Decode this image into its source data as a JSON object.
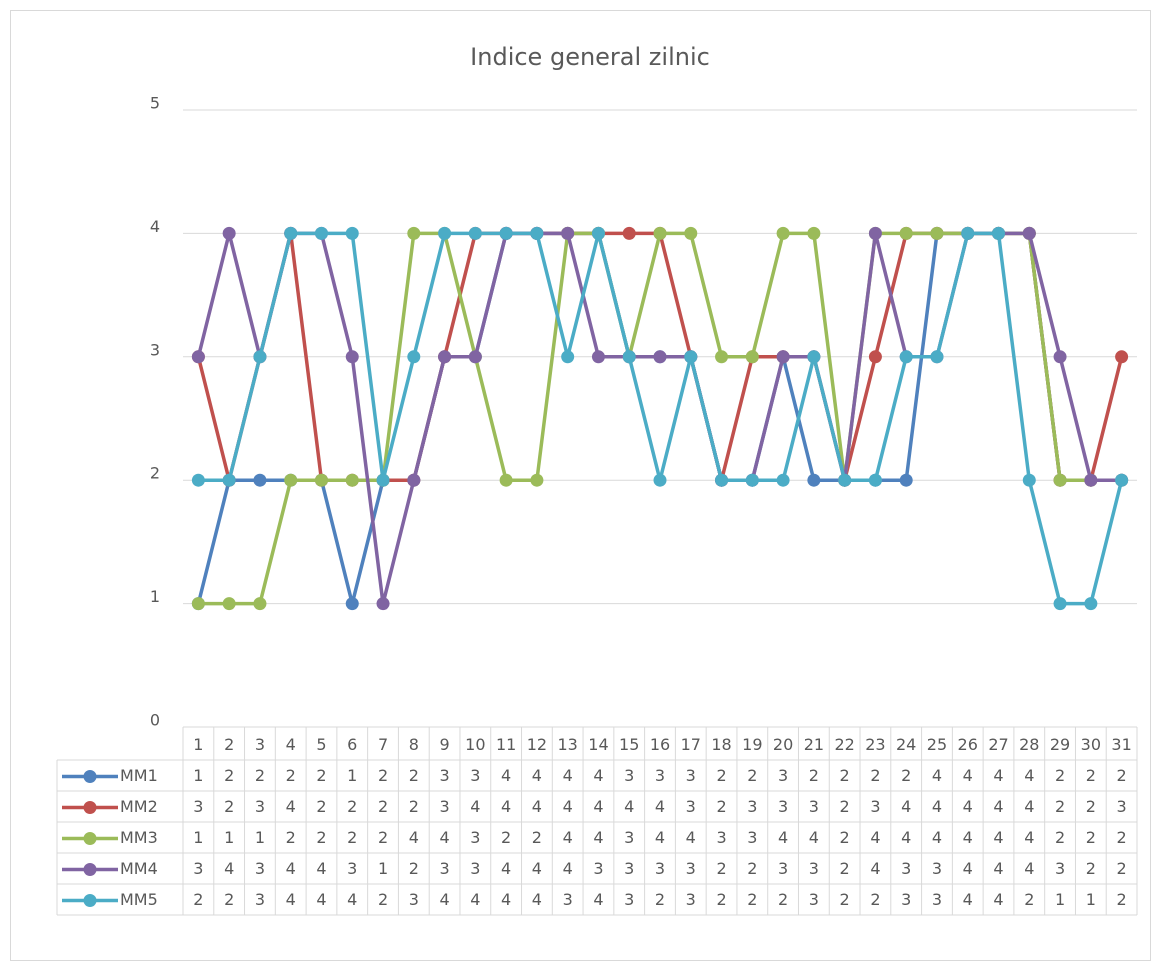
{
  "chart_data": {
    "type": "line",
    "title": "Indice general zilnic",
    "categories": [
      1,
      2,
      3,
      4,
      5,
      6,
      7,
      8,
      9,
      10,
      11,
      12,
      13,
      14,
      15,
      16,
      17,
      18,
      19,
      20,
      21,
      22,
      23,
      24,
      25,
      26,
      27,
      28,
      29,
      30,
      31
    ],
    "series": [
      {
        "name": "MM1",
        "color": "#4f81bd",
        "values": [
          1,
          2,
          2,
          2,
          2,
          1,
          2,
          2,
          3,
          3,
          4,
          4,
          4,
          4,
          3,
          3,
          3,
          2,
          2,
          3,
          2,
          2,
          2,
          2,
          4,
          4,
          4,
          4,
          2,
          2,
          2
        ]
      },
      {
        "name": "MM2",
        "color": "#c0504d",
        "values": [
          3,
          2,
          3,
          4,
          2,
          2,
          2,
          2,
          3,
          4,
          4,
          4,
          4,
          4,
          4,
          4,
          3,
          2,
          3,
          3,
          3,
          2,
          3,
          4,
          4,
          4,
          4,
          4,
          2,
          2,
          3
        ]
      },
      {
        "name": "MM3",
        "color": "#9bbb59",
        "values": [
          1,
          1,
          1,
          2,
          2,
          2,
          2,
          4,
          4,
          3,
          2,
          2,
          4,
          4,
          3,
          4,
          4,
          3,
          3,
          4,
          4,
          2,
          4,
          4,
          4,
          4,
          4,
          4,
          2,
          2,
          2
        ]
      },
      {
        "name": "MM4",
        "color": "#8064a2",
        "values": [
          3,
          4,
          3,
          4,
          4,
          3,
          1,
          2,
          3,
          3,
          4,
          4,
          4,
          3,
          3,
          3,
          3,
          2,
          2,
          3,
          3,
          2,
          4,
          3,
          3,
          4,
          4,
          4,
          3,
          2,
          2
        ]
      },
      {
        "name": "MM5",
        "color": "#4bacc6",
        "values": [
          2,
          2,
          3,
          4,
          4,
          4,
          2,
          3,
          4,
          4,
          4,
          4,
          3,
          4,
          3,
          2,
          3,
          2,
          2,
          2,
          3,
          2,
          2,
          3,
          3,
          4,
          4,
          2,
          1,
          1,
          2
        ]
      }
    ],
    "ylim": [
      0,
      5
    ],
    "yticks": [
      0,
      1,
      2,
      3,
      4,
      5
    ],
    "grid": true,
    "data_table": true
  }
}
